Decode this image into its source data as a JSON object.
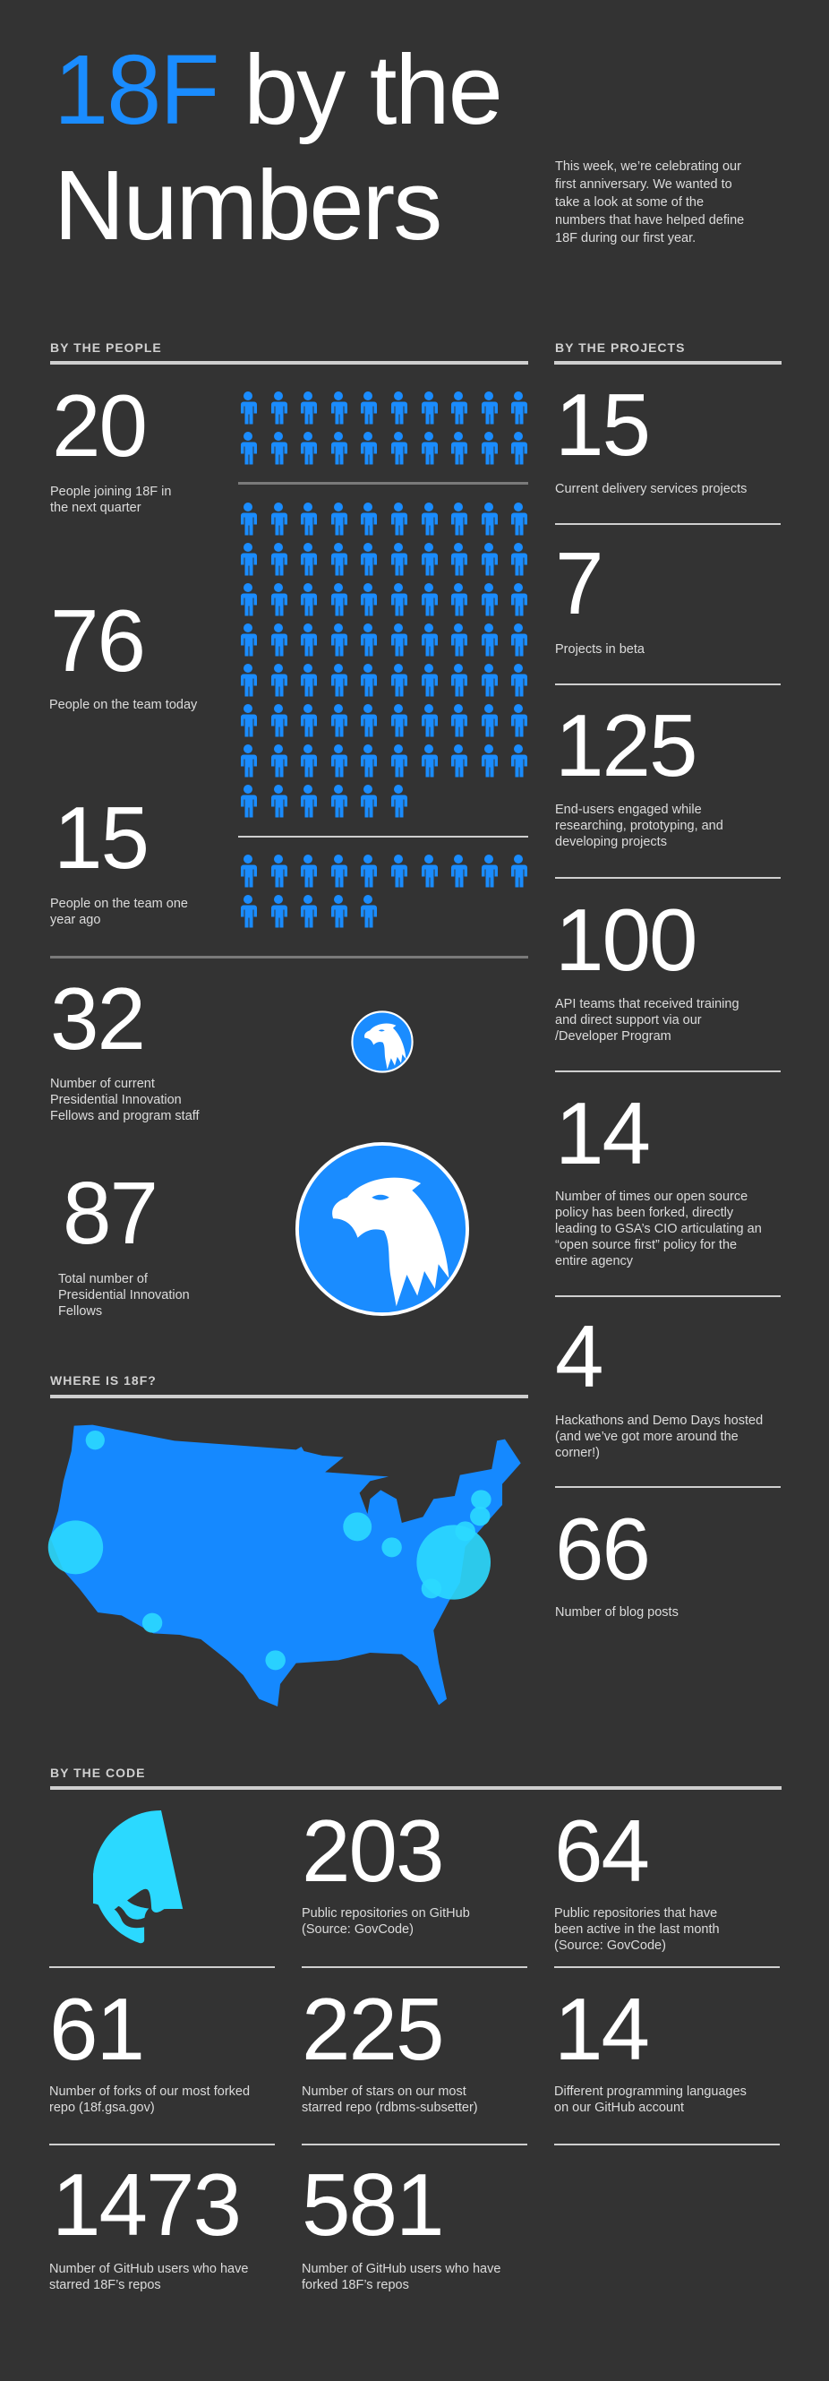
{
  "header": {
    "title_accent": "18F",
    "title_rest": "by the",
    "title_line2": "Numbers",
    "intro_lines": [
      "This week, we’re celebrating our",
      "first anniversary. We wanted to",
      "take a look at some of the",
      "numbers that have helped define",
      "18F during our first year."
    ]
  },
  "colors": {
    "background": "#333333",
    "accent": "#1a8cff",
    "highlight": "#2bd9ff",
    "text": "#ffffff"
  },
  "people": {
    "heading": "BY THE PEOPLE",
    "joining": {
      "number": "20",
      "label": [
        "People joining 18F in",
        "the next quarter"
      ],
      "icon_count": 20
    },
    "today": {
      "number": "76",
      "label": [
        "People on the team today"
      ],
      "icon_count": 76
    },
    "year_ago": {
      "number": "15",
      "label": [
        "People on the team one",
        "year ago"
      ],
      "icon_count": 15
    },
    "pif_current": {
      "number": "32",
      "label": [
        "Number of current",
        "Presidential Innovation",
        "Fellows and program staff"
      ]
    },
    "pif_total": {
      "number": "87",
      "label": [
        "Total number of",
        "Presidential Innovation",
        "Fellows"
      ]
    }
  },
  "projects": {
    "heading": "BY THE PROJECTS",
    "items": [
      {
        "number": "15",
        "label": [
          "Current delivery services projects"
        ]
      },
      {
        "number": "7",
        "label": [
          "Projects in beta"
        ]
      },
      {
        "number": "125",
        "label": [
          "End-users engaged while",
          "researching, prototyping, and",
          "developing projects"
        ]
      },
      {
        "number": "100",
        "label": [
          "API teams that received training",
          "and direct support via our",
          "/Developer Program"
        ]
      },
      {
        "number": "14",
        "label": [
          "Number of times our open source",
          "policy has been forked, directly",
          "leading to GSA’s CIO articulating an",
          "“open source first” policy for the",
          "entire agency"
        ]
      },
      {
        "number": "4",
        "label": [
          "Hackathons and Demo Days hosted",
          "(and we’ve got more around the",
          "corner!)"
        ]
      },
      {
        "number": "66",
        "label": [
          "Number of blog posts"
        ]
      }
    ]
  },
  "where": {
    "heading": "WHERE IS 18F?"
  },
  "code": {
    "heading": "BY THE CODE",
    "items": [
      {
        "number": "203",
        "label": [
          "Public repositories on GitHub",
          "(Source: GovCode)"
        ]
      },
      {
        "number": "64",
        "label": [
          "Public repositories that have",
          "been active in the last month",
          "(Source: GovCode)"
        ]
      },
      {
        "number": "61",
        "label": [
          "Number of forks of our most forked",
          "repo (18f.gsa.gov)"
        ]
      },
      {
        "number": "225",
        "label": [
          "Number of stars on our most",
          "starred repo (rdbms-subsetter)"
        ]
      },
      {
        "number": "14",
        "label": [
          "Different programming languages",
          "on our GitHub account"
        ]
      },
      {
        "number": "1473",
        "label": [
          "Number of GitHub users who have",
          "starred 18F’s repos"
        ]
      },
      {
        "number": "581",
        "label": [
          "Number of GitHub users who have",
          "forked 18F’s repos"
        ]
      }
    ]
  }
}
